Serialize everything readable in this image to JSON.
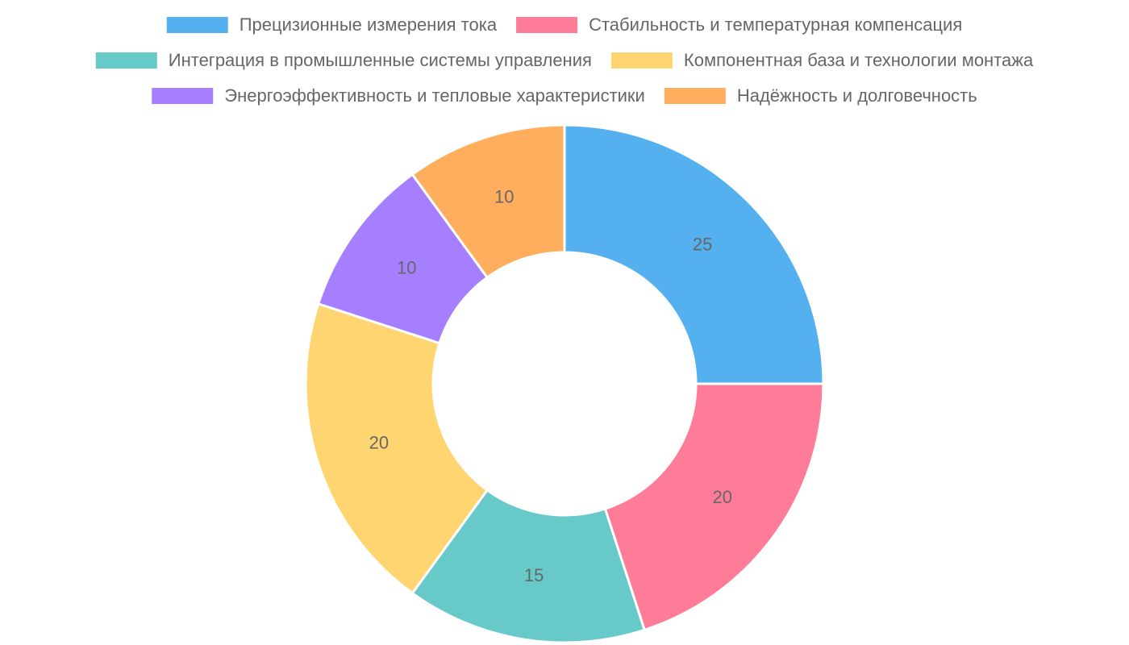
{
  "chart_data": {
    "type": "doughnut",
    "categories": [
      "Прецизионные измерения тока",
      "Стабильность и температурная компенсация",
      "Интеграция в промышленные системы управления",
      "Компонентная база и технологии монтажа",
      "Энергоэффективность и тепловые характеристики",
      "Надёжность и долговечность"
    ],
    "values": [
      25,
      20,
      15,
      20,
      10,
      10
    ],
    "colors": [
      "#54b0ef",
      "#ff7c98",
      "#68c9c9",
      "#ffd572",
      "#a57fff",
      "#ffae5d"
    ],
    "legend": "top"
  }
}
